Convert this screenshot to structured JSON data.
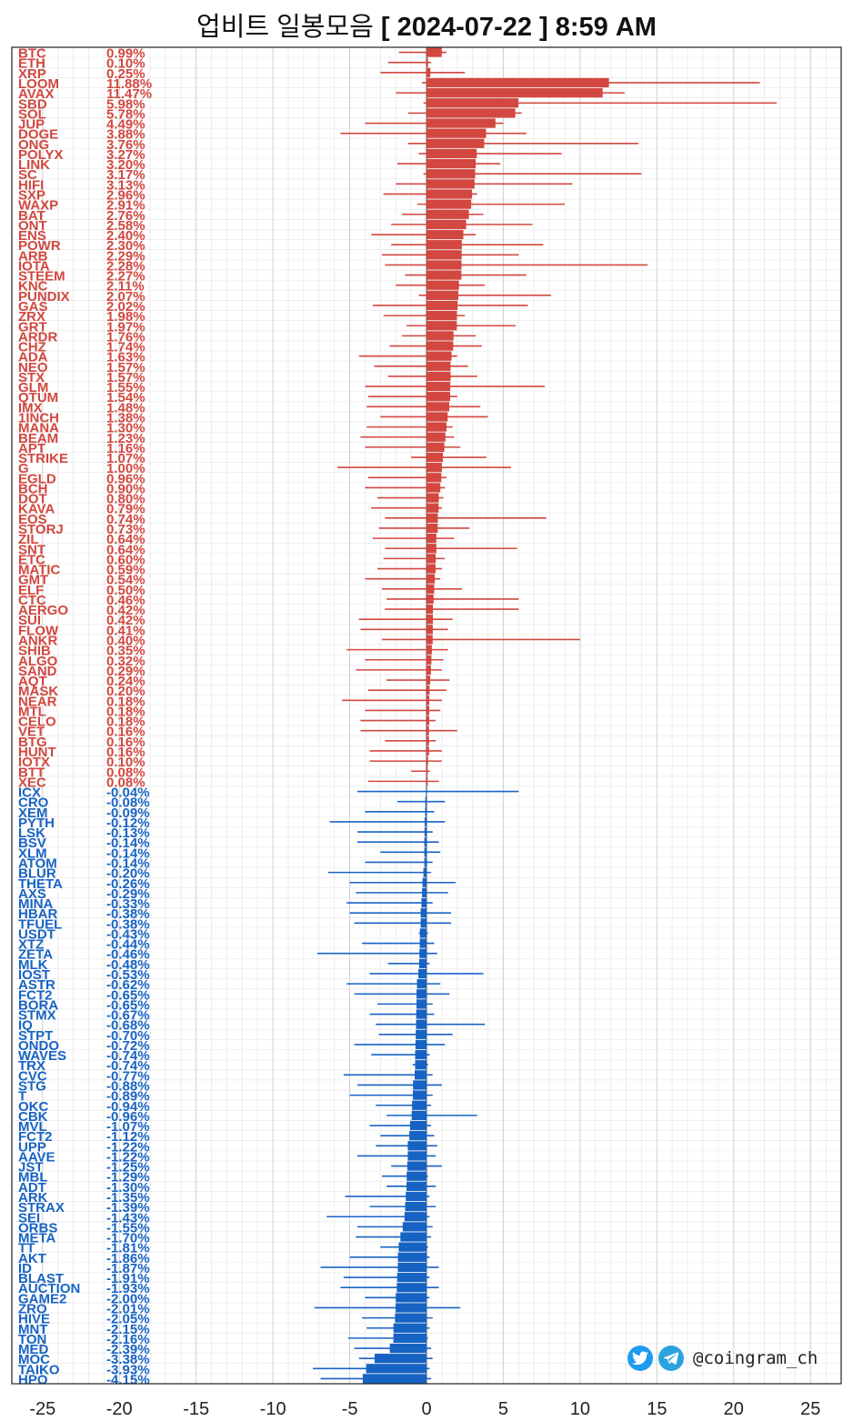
{
  "title": {
    "prefix": "업비트 일봉모음",
    "date": "[ 2024-07-22 ]  8:59 AM"
  },
  "brand": {
    "handle": "@coingram_ch",
    "icons": [
      "twitter-icon",
      "telegram-icon"
    ]
  },
  "chart_data": {
    "type": "bar",
    "orientation": "horizontal",
    "x_axis": {
      "min": -27,
      "max": 27,
      "ticks": [
        -25,
        -20,
        -15,
        -10,
        -5,
        0,
        5,
        10,
        15,
        20,
        25
      ]
    },
    "grid": true,
    "colors": {
      "positive": "#d2473f",
      "negative": "#1763c4"
    },
    "series": [
      {
        "name": "BTC",
        "label": "0.99%",
        "value": 0.99,
        "low": -1.8,
        "high": 1.3
      },
      {
        "name": "ETH",
        "label": "0.10%",
        "value": 0.1,
        "low": -2.5,
        "high": 0.3
      },
      {
        "name": "XRP",
        "label": "0.25%",
        "value": 0.25,
        "low": -3.0,
        "high": 2.5
      },
      {
        "name": "LOOM",
        "label": "11.88%",
        "value": 11.88,
        "low": -0.3,
        "high": 21.7
      },
      {
        "name": "AVAX",
        "label": "11.47%",
        "value": 11.47,
        "low": -2.0,
        "high": 12.9
      },
      {
        "name": "SBD",
        "label": "5.98%",
        "value": 5.98,
        "low": -0.2,
        "high": 22.8
      },
      {
        "name": "SOL",
        "label": "5.78%",
        "value": 5.78,
        "low": -1.2,
        "high": 6.2
      },
      {
        "name": "JUP",
        "label": "4.49%",
        "value": 4.49,
        "low": -4.0,
        "high": 5.0
      },
      {
        "name": "DOGE",
        "label": "3.88%",
        "value": 3.88,
        "low": -5.6,
        "high": 6.5
      },
      {
        "name": "ONG",
        "label": "3.76%",
        "value": 3.76,
        "low": -1.2,
        "high": 13.8
      },
      {
        "name": "POLYX",
        "label": "3.27%",
        "value": 3.27,
        "low": -0.5,
        "high": 8.8
      },
      {
        "name": "LINK",
        "label": "3.20%",
        "value": 3.2,
        "low": -1.9,
        "high": 4.8
      },
      {
        "name": "SC",
        "label": "3.17%",
        "value": 3.17,
        "low": -0.2,
        "high": 14.0
      },
      {
        "name": "HIFI",
        "label": "3.13%",
        "value": 3.13,
        "low": -2.0,
        "high": 9.5
      },
      {
        "name": "SXP",
        "label": "2.96%",
        "value": 2.96,
        "low": -2.8,
        "high": 3.3
      },
      {
        "name": "WAXP",
        "label": "2.91%",
        "value": 2.91,
        "low": -0.6,
        "high": 9.0
      },
      {
        "name": "BAT",
        "label": "2.76%",
        "value": 2.76,
        "low": -1.6,
        "high": 3.7
      },
      {
        "name": "ONT",
        "label": "2.58%",
        "value": 2.58,
        "low": -2.3,
        "high": 6.9
      },
      {
        "name": "ENS",
        "label": "2.40%",
        "value": 2.4,
        "low": -3.6,
        "high": 3.2
      },
      {
        "name": "POWR",
        "label": "2.30%",
        "value": 2.3,
        "low": -2.3,
        "high": 7.6
      },
      {
        "name": "ARB",
        "label": "2.29%",
        "value": 2.29,
        "low": -2.9,
        "high": 6.0
      },
      {
        "name": "IOTA",
        "label": "2.28%",
        "value": 2.28,
        "low": -2.7,
        "high": 14.4
      },
      {
        "name": "STEEM",
        "label": "2.27%",
        "value": 2.27,
        "low": -1.4,
        "high": 6.5
      },
      {
        "name": "KNC",
        "label": "2.11%",
        "value": 2.11,
        "low": -2.0,
        "high": 3.8
      },
      {
        "name": "PUNDIX",
        "label": "2.07%",
        "value": 2.07,
        "low": -0.5,
        "high": 8.1
      },
      {
        "name": "GAS",
        "label": "2.02%",
        "value": 2.02,
        "low": -3.5,
        "high": 6.6
      },
      {
        "name": "ZRX",
        "label": "1.98%",
        "value": 1.98,
        "low": -2.8,
        "high": 2.5
      },
      {
        "name": "GRT",
        "label": "1.97%",
        "value": 1.97,
        "low": -1.3,
        "high": 5.8
      },
      {
        "name": "ARDR",
        "label": "1.76%",
        "value": 1.76,
        "low": -1.6,
        "high": 3.2
      },
      {
        "name": "CHZ",
        "label": "1.74%",
        "value": 1.74,
        "low": -2.4,
        "high": 3.6
      },
      {
        "name": "ADA",
        "label": "1.63%",
        "value": 1.63,
        "low": -4.4,
        "high": 2.0
      },
      {
        "name": "NEO",
        "label": "1.57%",
        "value": 1.57,
        "low": -3.4,
        "high": 2.7
      },
      {
        "name": "STX",
        "label": "1.57%",
        "value": 1.57,
        "low": -2.5,
        "high": 3.3
      },
      {
        "name": "GLM",
        "label": "1.55%",
        "value": 1.55,
        "low": -4.0,
        "high": 7.7
      },
      {
        "name": "QTUM",
        "label": "1.54%",
        "value": 1.54,
        "low": -3.8,
        "high": 2.0
      },
      {
        "name": "IMX",
        "label": "1.48%",
        "value": 1.48,
        "low": -3.9,
        "high": 3.5
      },
      {
        "name": "1INCH",
        "label": "1.38%",
        "value": 1.38,
        "low": -3.0,
        "high": 4.0
      },
      {
        "name": "MANA",
        "label": "1.30%",
        "value": 1.3,
        "low": -3.9,
        "high": 1.7
      },
      {
        "name": "BEAM",
        "label": "1.23%",
        "value": 1.23,
        "low": -4.3,
        "high": 1.8
      },
      {
        "name": "APT",
        "label": "1.16%",
        "value": 1.16,
        "low": -4.0,
        "high": 2.2
      },
      {
        "name": "STRIKE",
        "label": "1.07%",
        "value": 1.07,
        "low": -1.0,
        "high": 3.9
      },
      {
        "name": "G",
        "label": "1.00%",
        "value": 1.0,
        "low": -5.8,
        "high": 5.5
      },
      {
        "name": "EGLD",
        "label": "0.96%",
        "value": 0.96,
        "low": -3.8,
        "high": 1.3
      },
      {
        "name": "BCH",
        "label": "0.90%",
        "value": 0.9,
        "low": -4.0,
        "high": 1.2
      },
      {
        "name": "DOT",
        "label": "0.80%",
        "value": 0.8,
        "low": -3.2,
        "high": 1.1
      },
      {
        "name": "KAVA",
        "label": "0.79%",
        "value": 0.79,
        "low": -3.6,
        "high": 1.0
      },
      {
        "name": "EOS",
        "label": "0.74%",
        "value": 0.74,
        "low": -2.7,
        "high": 7.8
      },
      {
        "name": "STORJ",
        "label": "0.73%",
        "value": 0.73,
        "low": -3.1,
        "high": 2.8
      },
      {
        "name": "ZIL",
        "label": "0.64%",
        "value": 0.64,
        "low": -3.5,
        "high": 1.8
      },
      {
        "name": "SNT",
        "label": "0.64%",
        "value": 0.64,
        "low": -2.7,
        "high": 5.9
      },
      {
        "name": "ETC",
        "label": "0.60%",
        "value": 0.6,
        "low": -2.8,
        "high": 1.2
      },
      {
        "name": "MATIC",
        "label": "0.59%",
        "value": 0.59,
        "low": -3.2,
        "high": 1.0
      },
      {
        "name": "GMT",
        "label": "0.54%",
        "value": 0.54,
        "low": -4.0,
        "high": 0.9
      },
      {
        "name": "ELF",
        "label": "0.50%",
        "value": 0.5,
        "low": -2.9,
        "high": 2.3
      },
      {
        "name": "CTC",
        "label": "0.46%",
        "value": 0.46,
        "low": -2.6,
        "high": 6.0
      },
      {
        "name": "AERGO",
        "label": "0.42%",
        "value": 0.42,
        "low": -2.7,
        "high": 6.0
      },
      {
        "name": "SUI",
        "label": "0.42%",
        "value": 0.42,
        "low": -4.4,
        "high": 1.7
      },
      {
        "name": "FLOW",
        "label": "0.41%",
        "value": 0.41,
        "low": -4.3,
        "high": 1.4
      },
      {
        "name": "ANKR",
        "label": "0.40%",
        "value": 0.4,
        "low": -2.9,
        "high": 10.0
      },
      {
        "name": "SHIB",
        "label": "0.35%",
        "value": 0.35,
        "low": -5.2,
        "high": 1.4
      },
      {
        "name": "ALGO",
        "label": "0.32%",
        "value": 0.32,
        "low": -4.0,
        "high": 1.1
      },
      {
        "name": "SAND",
        "label": "0.29%",
        "value": 0.29,
        "low": -4.6,
        "high": 1.0
      },
      {
        "name": "AQT",
        "label": "0.24%",
        "value": 0.24,
        "low": -2.6,
        "high": 1.5
      },
      {
        "name": "MASK",
        "label": "0.20%",
        "value": 0.2,
        "low": -3.8,
        "high": 1.3
      },
      {
        "name": "NEAR",
        "label": "0.18%",
        "value": 0.18,
        "low": -5.5,
        "high": 1.0
      },
      {
        "name": "MTL",
        "label": "0.18%",
        "value": 0.18,
        "low": -4.0,
        "high": 0.9
      },
      {
        "name": "CELO",
        "label": "0.18%",
        "value": 0.18,
        "low": -4.3,
        "high": 0.6
      },
      {
        "name": "VET",
        "label": "0.16%",
        "value": 0.16,
        "low": -4.3,
        "high": 2.0
      },
      {
        "name": "BTG",
        "label": "0.16%",
        "value": 0.16,
        "low": -2.7,
        "high": 0.6
      },
      {
        "name": "HUNT",
        "label": "0.16%",
        "value": 0.16,
        "low": -3.7,
        "high": 1.0
      },
      {
        "name": "IOTX",
        "label": "0.10%",
        "value": 0.1,
        "low": -3.7,
        "high": 1.0
      },
      {
        "name": "BTT",
        "label": "0.08%",
        "value": 0.08,
        "low": -1.0,
        "high": 0.2
      },
      {
        "name": "XEC",
        "label": "0.08%",
        "value": 0.08,
        "low": -3.8,
        "high": 0.8
      },
      {
        "name": "ICX",
        "label": "-0.04%",
        "value": -0.04,
        "low": -4.5,
        "high": 6.0
      },
      {
        "name": "CRO",
        "label": "-0.08%",
        "value": -0.08,
        "low": -1.9,
        "high": 1.2
      },
      {
        "name": "XEM",
        "label": "-0.09%",
        "value": -0.09,
        "low": -4.0,
        "high": 0.5
      },
      {
        "name": "PYTH",
        "label": "-0.12%",
        "value": -0.12,
        "low": -6.3,
        "high": 1.2
      },
      {
        "name": "LSK",
        "label": "-0.13%",
        "value": -0.13,
        "low": -4.5,
        "high": 0.4
      },
      {
        "name": "BSV",
        "label": "-0.14%",
        "value": -0.14,
        "low": -4.5,
        "high": 0.8
      },
      {
        "name": "XLM",
        "label": "-0.14%",
        "value": -0.14,
        "low": -3.0,
        "high": 0.9
      },
      {
        "name": "ATOM",
        "label": "-0.14%",
        "value": -0.14,
        "low": -4.0,
        "high": 0.4
      },
      {
        "name": "BLUR",
        "label": "-0.20%",
        "value": -0.2,
        "low": -6.4,
        "high": 0.3
      },
      {
        "name": "THETA",
        "label": "-0.26%",
        "value": -0.26,
        "low": -5.0,
        "high": 1.9
      },
      {
        "name": "AXS",
        "label": "-0.29%",
        "value": -0.29,
        "low": -4.6,
        "high": 1.4
      },
      {
        "name": "MINA",
        "label": "-0.33%",
        "value": -0.33,
        "low": -5.2,
        "high": 0.4
      },
      {
        "name": "HBAR",
        "label": "-0.38%",
        "value": -0.38,
        "low": -5.0,
        "high": 1.6
      },
      {
        "name": "TFUEL",
        "label": "-0.38%",
        "value": -0.38,
        "low": -4.7,
        "high": 1.6
      },
      {
        "name": "USDT",
        "label": "-0.43%",
        "value": -0.43,
        "low": -0.5,
        "high": 0.1
      },
      {
        "name": "XTZ",
        "label": "-0.44%",
        "value": -0.44,
        "low": -4.2,
        "high": 0.5
      },
      {
        "name": "ZETA",
        "label": "-0.46%",
        "value": -0.46,
        "low": -7.1,
        "high": 0.7
      },
      {
        "name": "MLK",
        "label": "-0.48%",
        "value": -0.48,
        "low": -2.5,
        "high": 0.2
      },
      {
        "name": "IOST",
        "label": "-0.53%",
        "value": -0.53,
        "low": -3.7,
        "high": 3.7
      },
      {
        "name": "ASTR",
        "label": "-0.62%",
        "value": -0.62,
        "low": -5.2,
        "high": 0.9
      },
      {
        "name": "FCT2",
        "label": "-0.65%",
        "value": -0.65,
        "low": -4.7,
        "high": 1.5
      },
      {
        "name": "BORA",
        "label": "-0.65%",
        "value": -0.65,
        "low": -3.2,
        "high": 0.4
      },
      {
        "name": "STMX",
        "label": "-0.67%",
        "value": -0.67,
        "low": -3.7,
        "high": 0.5
      },
      {
        "name": "IQ",
        "label": "-0.68%",
        "value": -0.68,
        "low": -3.3,
        "high": 3.8
      },
      {
        "name": "STPT",
        "label": "-0.70%",
        "value": -0.7,
        "low": -3.1,
        "high": 1.7
      },
      {
        "name": "ONDO",
        "label": "-0.72%",
        "value": -0.72,
        "low": -4.7,
        "high": 1.2
      },
      {
        "name": "WAVES",
        "label": "-0.74%",
        "value": -0.74,
        "low": -3.6,
        "high": 0.2
      },
      {
        "name": "TRX",
        "label": "-0.74%",
        "value": -0.74,
        "low": -0.9,
        "high": 0.1
      },
      {
        "name": "CVC",
        "label": "-0.77%",
        "value": -0.77,
        "low": -5.4,
        "high": 0.4
      },
      {
        "name": "STG",
        "label": "-0.88%",
        "value": -0.88,
        "low": -4.5,
        "high": 1.0
      },
      {
        "name": "T",
        "label": "-0.89%",
        "value": -0.89,
        "low": -5.0,
        "high": 0.4
      },
      {
        "name": "OKC",
        "label": "-0.94%",
        "value": -0.94,
        "low": -3.3,
        "high": 0.3
      },
      {
        "name": "CBK",
        "label": "-0.96%",
        "value": -0.96,
        "low": -2.6,
        "high": 3.3
      },
      {
        "name": "MVL",
        "label": "-1.07%",
        "value": -1.07,
        "low": -3.7,
        "high": 0.3
      },
      {
        "name": "FCT2",
        "label": "-1.12%",
        "value": -1.12,
        "low": -3.0,
        "high": 0.5
      },
      {
        "name": "UPP",
        "label": "-1.22%",
        "value": -1.22,
        "low": -3.3,
        "high": 0.7
      },
      {
        "name": "AAVE",
        "label": "-1.22%",
        "value": -1.22,
        "low": -4.5,
        "high": 0.6
      },
      {
        "name": "JST",
        "label": "-1.25%",
        "value": -1.25,
        "low": -2.3,
        "high": 1.0
      },
      {
        "name": "MBL",
        "label": "-1.29%",
        "value": -1.29,
        "low": -2.9,
        "high": 0.1
      },
      {
        "name": "ADT",
        "label": "-1.30%",
        "value": -1.3,
        "low": -2.6,
        "high": 0.6
      },
      {
        "name": "ARK",
        "label": "-1.35%",
        "value": -1.35,
        "low": -5.3,
        "high": 0.2
      },
      {
        "name": "STRAX",
        "label": "-1.39%",
        "value": -1.39,
        "low": -3.7,
        "high": 0.6
      },
      {
        "name": "SEI",
        "label": "-1.43%",
        "value": -1.43,
        "low": -6.5,
        "high": 0.2
      },
      {
        "name": "ORBS",
        "label": "-1.55%",
        "value": -1.55,
        "low": -4.5,
        "high": 0.4
      },
      {
        "name": "META",
        "label": "-1.70%",
        "value": -1.7,
        "low": -4.6,
        "high": 0.3
      },
      {
        "name": "TT",
        "label": "-1.81%",
        "value": -1.81,
        "low": -3.0,
        "high": 0.1
      },
      {
        "name": "AKT",
        "label": "-1.86%",
        "value": -1.86,
        "low": -5.0,
        "high": 0.2
      },
      {
        "name": "ID",
        "label": "-1.87%",
        "value": -1.87,
        "low": -6.9,
        "high": 0.8
      },
      {
        "name": "BLAST",
        "label": "-1.91%",
        "value": -1.91,
        "low": -5.4,
        "high": 0.2
      },
      {
        "name": "AUCTION",
        "label": "-1.93%",
        "value": -1.93,
        "low": -5.6,
        "high": 0.8
      },
      {
        "name": "GAME2",
        "label": "-2.00%",
        "value": -2.0,
        "low": -4.0,
        "high": 0.2
      },
      {
        "name": "ZRO",
        "label": "-2.01%",
        "value": -2.01,
        "low": -7.3,
        "high": 2.2
      },
      {
        "name": "HIVE",
        "label": "-2.05%",
        "value": -2.05,
        "low": -4.2,
        "high": 0.4
      },
      {
        "name": "MNT",
        "label": "-2.15%",
        "value": -2.15,
        "low": -3.9,
        "high": 0.2
      },
      {
        "name": "TON",
        "label": "-2.16%",
        "value": -2.16,
        "low": -5.1,
        "high": 0.1
      },
      {
        "name": "MED",
        "label": "-2.39%",
        "value": -2.39,
        "low": -4.7,
        "high": 0.3
      },
      {
        "name": "MOC",
        "label": "-3.38%",
        "value": -3.38,
        "low": -4.4,
        "high": 0.4
      },
      {
        "name": "TAIKO",
        "label": "-3.93%",
        "value": -3.93,
        "low": -7.4,
        "high": 0.2
      },
      {
        "name": "HPO",
        "label": "-4.15%",
        "value": -4.15,
        "low": -6.9,
        "high": 0.3
      }
    ]
  }
}
